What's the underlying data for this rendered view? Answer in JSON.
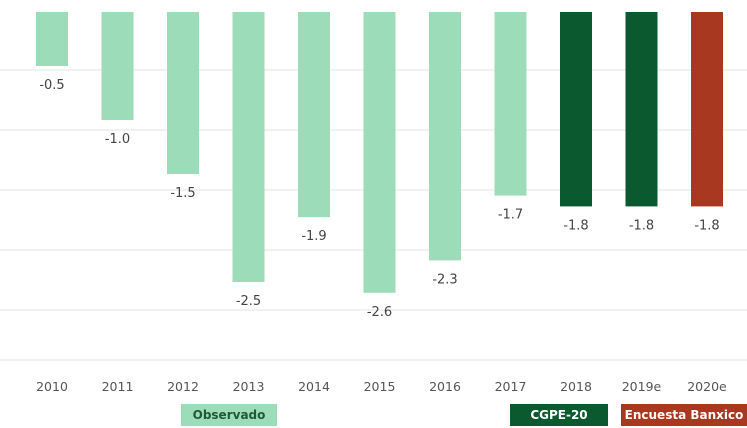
{
  "chart_data": {
    "type": "bar",
    "categories": [
      "2010",
      "2011",
      "2012",
      "2013",
      "2014",
      "2015",
      "2016",
      "2017",
      "2018",
      "2019e",
      "2020e"
    ],
    "values": [
      -0.5,
      -1.0,
      -1.5,
      -2.5,
      -1.9,
      -2.6,
      -2.3,
      -1.7,
      -1.8,
      -1.8,
      -1.8
    ],
    "value_labels": [
      "-0.5",
      "-1.0",
      "-1.5",
      "-2.5",
      "-1.9",
      "-2.6",
      "-2.3",
      "-1.7",
      "-1.8",
      "-1.8",
      "-1.8"
    ],
    "groups": [
      "Observado",
      "Observado",
      "Observado",
      "Observado",
      "Observado",
      "Observado",
      "Observado",
      "Observado",
      "CGPE-20",
      "CGPE-20",
      "Encuesta Banxico"
    ],
    "colors": {
      "Observado": "#9ddcb9",
      "CGPE-20": "#0b5a2f",
      "Encuesta Banxico": "#a8381f"
    },
    "legend": [
      "Observado",
      "CGPE-20",
      "Encuesta Banxico"
    ],
    "legend_placement": "bottom",
    "title": "",
    "xlabel": "",
    "ylabel": "",
    "ylim": [
      -2.85,
      0
    ],
    "grid": true
  }
}
